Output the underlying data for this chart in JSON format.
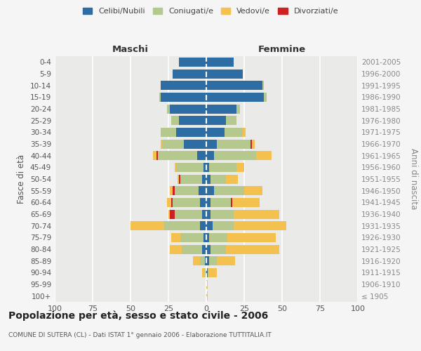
{
  "age_groups": [
    "100+",
    "95-99",
    "90-94",
    "85-89",
    "80-84",
    "75-79",
    "70-74",
    "65-69",
    "60-64",
    "55-59",
    "50-54",
    "45-49",
    "40-44",
    "35-39",
    "30-34",
    "25-29",
    "20-24",
    "15-19",
    "10-14",
    "5-9",
    "0-4"
  ],
  "birth_years": [
    "≤ 1905",
    "1906-1910",
    "1911-1915",
    "1916-1920",
    "1921-1925",
    "1926-1930",
    "1931-1935",
    "1936-1940",
    "1941-1945",
    "1946-1950",
    "1951-1955",
    "1956-1960",
    "1961-1965",
    "1966-1970",
    "1971-1975",
    "1976-1980",
    "1981-1985",
    "1986-1990",
    "1991-1995",
    "1996-2000",
    "2001-2005"
  ],
  "males": {
    "celibi": [
      0,
      0,
      0,
      1,
      3,
      2,
      4,
      3,
      4,
      5,
      3,
      2,
      6,
      15,
      20,
      18,
      24,
      30,
      30,
      22,
      18
    ],
    "coniugati": [
      0,
      0,
      1,
      3,
      13,
      15,
      24,
      18,
      18,
      16,
      14,
      18,
      26,
      14,
      10,
      5,
      2,
      1,
      0,
      0,
      0
    ],
    "vedovi": [
      0,
      0,
      2,
      5,
      8,
      6,
      22,
      1,
      3,
      2,
      1,
      1,
      2,
      1,
      0,
      0,
      0,
      0,
      0,
      0,
      0
    ],
    "divorziati": [
      0,
      0,
      0,
      0,
      0,
      0,
      0,
      3,
      1,
      1,
      1,
      0,
      1,
      0,
      0,
      0,
      0,
      0,
      0,
      0,
      0
    ]
  },
  "females": {
    "nubili": [
      0,
      0,
      1,
      2,
      3,
      2,
      4,
      3,
      3,
      5,
      3,
      2,
      5,
      7,
      12,
      13,
      20,
      38,
      37,
      24,
      18
    ],
    "coniugate": [
      0,
      0,
      1,
      5,
      10,
      12,
      14,
      15,
      13,
      20,
      10,
      18,
      28,
      22,
      12,
      7,
      2,
      2,
      1,
      0,
      0
    ],
    "vedove": [
      1,
      1,
      5,
      12,
      35,
      32,
      35,
      30,
      18,
      12,
      8,
      5,
      10,
      2,
      2,
      0,
      0,
      0,
      0,
      0,
      0
    ],
    "divorziate": [
      0,
      0,
      0,
      0,
      0,
      0,
      0,
      0,
      1,
      0,
      0,
      0,
      0,
      1,
      0,
      0,
      0,
      0,
      0,
      0,
      0
    ]
  },
  "colors": {
    "celibi": "#2e6da4",
    "coniugati": "#b5c98e",
    "vedovi": "#f4c14f",
    "divorziati": "#cc2222"
  },
  "xlim": 100,
  "title": "Popolazione per età, sesso e stato civile - 2006",
  "subtitle": "COMUNE DI SUTERA (CL) - Dati ISTAT 1° gennaio 2006 - Elaborazione TUTTITALIA.IT",
  "ylabel_left": "Fasce di età",
  "ylabel_right": "Anni di nascita",
  "xlabel_left": "Maschi",
  "xlabel_right": "Femmine",
  "bg_color": "#f5f5f5",
  "plot_bg": "#eaeae8"
}
